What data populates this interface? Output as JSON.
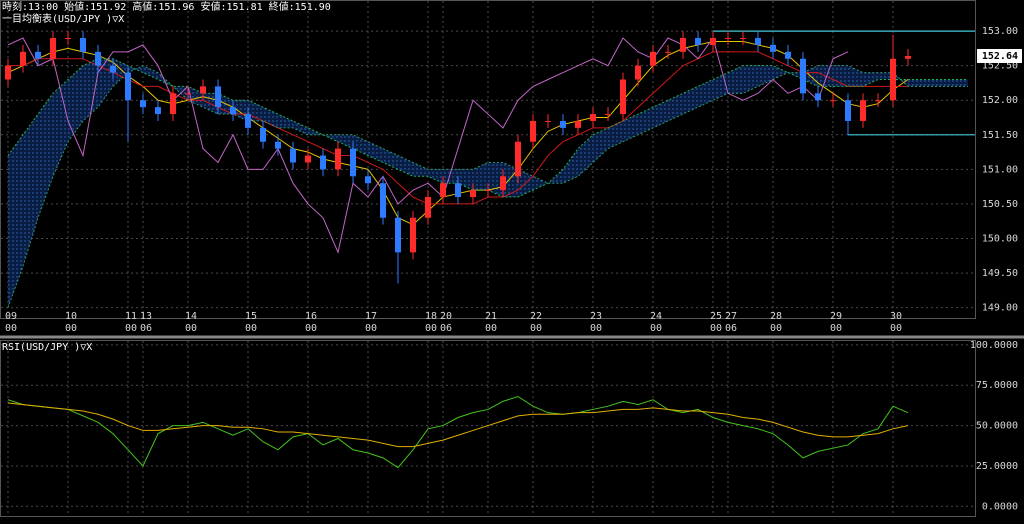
{
  "chart_data": [
    {
      "type": "candlestick",
      "header": "時刻:13:00 始値:151.92 高値:151.96 安値:151.81 終値:151.90",
      "title": "一目均衡表(USD/JPY )▽X",
      "categories": [
        "09",
        null,
        null,
        null,
        "10",
        null,
        null,
        null,
        "11",
        "13",
        null,
        null,
        "14",
        null,
        null,
        null,
        "15",
        null,
        null,
        null,
        "16",
        null,
        null,
        null,
        "17",
        null,
        null,
        null,
        "18",
        "20",
        null,
        null,
        "21",
        null,
        null,
        "22",
        null,
        null,
        null,
        "23",
        null,
        null,
        null,
        "24",
        null,
        null,
        null,
        "25",
        "27",
        null,
        null,
        "28",
        null,
        null,
        null,
        "29",
        null,
        null,
        null,
        "30",
        null,
        null,
        null,
        null,
        null
      ],
      "subcategories": [
        "00",
        null,
        null,
        null,
        "00",
        null,
        null,
        null,
        "00",
        "06",
        null,
        null,
        "00",
        null,
        null,
        null,
        "00",
        null,
        null,
        null,
        "00",
        null,
        null,
        null,
        "00",
        null,
        null,
        null,
        "00",
        "06",
        null,
        null,
        "00",
        null,
        null,
        "00",
        null,
        null,
        null,
        "00",
        null,
        null,
        null,
        "00",
        null,
        null,
        null,
        "00",
        "06",
        null,
        null,
        "00",
        null,
        null,
        null,
        "00",
        null,
        null,
        null,
        "00",
        null,
        null,
        null,
        null,
        null
      ],
      "open": [
        152.3,
        152.5,
        152.7,
        152.6,
        152.9,
        152.9,
        152.7,
        152.5,
        152.4,
        152.0,
        151.9,
        151.8,
        152.1,
        152.1,
        152.2,
        151.9,
        151.8,
        151.6,
        151.4,
        151.3,
        151.1,
        151.2,
        151.0,
        151.3,
        150.9,
        150.8,
        150.3,
        149.8,
        150.3,
        150.6,
        150.8,
        150.6,
        150.7,
        150.7,
        150.9,
        151.4,
        151.7,
        151.7,
        151.6,
        151.7,
        151.8,
        151.8,
        152.3,
        152.5,
        152.7,
        152.7,
        152.9,
        152.8,
        152.9,
        152.9,
        152.9,
        152.8,
        152.7,
        152.6,
        152.1,
        152.0,
        152.0,
        151.7,
        152.0,
        152.0,
        152.6,
        null,
        null,
        null,
        null
      ],
      "high": [
        152.6,
        152.8,
        152.8,
        153.0,
        153.0,
        153.0,
        152.8,
        152.6,
        152.5,
        152.1,
        152.0,
        152.2,
        152.2,
        152.3,
        152.3,
        152.0,
        151.9,
        151.7,
        151.5,
        151.4,
        151.3,
        151.3,
        151.4,
        151.4,
        151.0,
        150.9,
        150.4,
        150.4,
        150.7,
        150.9,
        150.9,
        150.8,
        150.8,
        151.0,
        151.5,
        151.8,
        151.8,
        151.8,
        151.8,
        151.9,
        151.9,
        152.4,
        152.6,
        152.8,
        152.8,
        153.0,
        153.0,
        153.0,
        153.0,
        153.0,
        153.0,
        152.9,
        152.8,
        152.7,
        152.2,
        152.1,
        152.1,
        152.1,
        152.1,
        152.95,
        152.74,
        null,
        null,
        null,
        null
      ],
      "low": [
        152.2,
        152.4,
        152.5,
        152.5,
        152.8,
        152.6,
        152.4,
        152.3,
        151.4,
        151.8,
        151.7,
        151.7,
        152.0,
        152.0,
        151.8,
        151.7,
        151.5,
        151.3,
        151.2,
        151.0,
        151.0,
        150.9,
        150.9,
        150.8,
        150.7,
        150.2,
        149.35,
        149.7,
        150.2,
        150.5,
        150.5,
        150.5,
        150.6,
        150.6,
        150.8,
        151.3,
        151.6,
        151.5,
        151.5,
        151.6,
        151.7,
        151.7,
        152.2,
        152.4,
        152.6,
        152.6,
        152.7,
        152.7,
        152.8,
        152.8,
        152.7,
        152.6,
        152.5,
        152.0,
        151.9,
        151.9,
        151.5,
        151.6,
        151.9,
        151.9,
        152.5,
        null,
        null,
        null,
        null
      ],
      "close": [
        152.5,
        152.7,
        152.6,
        152.9,
        152.9,
        152.7,
        152.5,
        152.4,
        152.0,
        151.9,
        151.8,
        152.1,
        152.1,
        152.2,
        151.9,
        151.8,
        151.6,
        151.4,
        151.3,
        151.1,
        151.2,
        151.0,
        151.3,
        150.9,
        150.8,
        150.3,
        149.8,
        150.3,
        150.6,
        150.8,
        150.6,
        150.7,
        150.7,
        150.9,
        151.4,
        151.7,
        151.7,
        151.6,
        151.7,
        151.8,
        151.8,
        152.3,
        152.5,
        152.7,
        152.7,
        152.9,
        152.8,
        152.9,
        152.9,
        152.9,
        152.8,
        152.7,
        152.6,
        152.1,
        152.0,
        152.0,
        151.7,
        152.0,
        152.0,
        152.6,
        152.64,
        null,
        null,
        null,
        null
      ],
      "up_color": "#ff2a2a",
      "down_color": "#2f7bff",
      "cloud_color": "#1e5aa8",
      "series": [
        {
          "color": "#e8c400",
          "values": [
            152.4,
            152.5,
            152.6,
            152.7,
            152.75,
            152.7,
            152.65,
            152.55,
            152.35,
            152.2,
            152.0,
            151.95,
            152.0,
            152.05,
            152.0,
            151.9,
            151.75,
            151.6,
            151.45,
            151.3,
            151.25,
            151.15,
            151.1,
            151.05,
            151.0,
            150.7,
            150.3,
            150.2,
            150.4,
            150.6,
            150.65,
            150.7,
            150.7,
            150.75,
            151.0,
            151.3,
            151.55,
            151.65,
            151.7,
            151.75,
            151.75,
            152.0,
            152.25,
            152.5,
            152.65,
            152.75,
            152.8,
            152.85,
            152.85,
            152.85,
            152.8,
            152.75,
            152.65,
            152.45,
            152.25,
            152.1,
            151.95,
            151.9,
            151.95,
            152.15,
            152.3,
            null,
            null,
            null,
            null
          ]
        },
        {
          "color": "#d01818",
          "values": [
            152.5,
            152.5,
            152.6,
            152.6,
            152.6,
            152.6,
            152.5,
            152.4,
            152.3,
            152.2,
            152.2,
            152.1,
            152.0,
            152.0,
            151.9,
            151.8,
            151.8,
            151.7,
            151.6,
            151.5,
            151.4,
            151.3,
            151.2,
            151.2,
            151.1,
            151.0,
            150.8,
            150.6,
            150.5,
            150.5,
            150.5,
            150.5,
            150.6,
            150.6,
            150.7,
            150.9,
            151.2,
            151.4,
            151.5,
            151.6,
            151.6,
            151.7,
            151.9,
            152.1,
            152.3,
            152.5,
            152.6,
            152.7,
            152.7,
            152.7,
            152.7,
            152.6,
            152.5,
            152.4,
            152.4,
            152.3,
            152.2,
            152.2,
            152.2,
            152.2,
            152.2,
            null,
            null,
            null,
            null
          ]
        },
        {
          "color": "#22b455",
          "dash": true,
          "values": [
            151.2,
            151.5,
            151.8,
            152.1,
            152.3,
            152.5,
            152.6,
            152.6,
            152.5,
            152.4,
            152.3,
            152.2,
            152.2,
            152.1,
            152.1,
            152.0,
            152.0,
            151.9,
            151.8,
            151.7,
            151.6,
            151.5,
            151.4,
            151.3,
            151.2,
            151.1,
            151.0,
            150.9,
            150.9,
            150.8,
            150.8,
            150.7,
            150.7,
            150.6,
            150.6,
            150.7,
            150.8,
            151.0,
            151.3,
            151.5,
            151.6,
            151.7,
            151.8,
            151.9,
            152.0,
            152.1,
            152.2,
            152.3,
            152.4,
            152.5,
            152.5,
            152.5,
            152.4,
            152.3,
            152.2,
            152.2,
            152.2,
            152.2,
            152.3,
            152.3,
            152.3,
            152.3,
            152.3,
            152.3,
            152.3
          ]
        },
        {
          "color": "#2f9a70",
          "dash": true,
          "values": [
            149.0,
            149.6,
            150.3,
            150.9,
            151.4,
            151.7,
            151.9,
            152.2,
            152.4,
            152.5,
            152.4,
            152.2,
            152.0,
            151.9,
            151.8,
            151.8,
            151.7,
            151.7,
            151.6,
            151.6,
            151.5,
            151.5,
            151.5,
            151.5,
            151.4,
            151.3,
            151.2,
            151.1,
            151.0,
            151.0,
            151.0,
            151.0,
            151.1,
            151.1,
            151.0,
            150.9,
            150.8,
            150.8,
            150.9,
            151.1,
            151.3,
            151.4,
            151.5,
            151.6,
            151.7,
            151.8,
            151.9,
            152.0,
            152.1,
            152.1,
            152.2,
            152.3,
            152.4,
            152.4,
            152.5,
            152.5,
            152.5,
            152.4,
            152.4,
            152.4,
            152.2,
            152.2,
            152.2,
            152.2,
            152.2
          ]
        },
        {
          "color": "#c466c8",
          "values": [
            152.8,
            152.9,
            152.5,
            152.6,
            151.7,
            151.2,
            152.4,
            152.7,
            152.7,
            152.8,
            152.5,
            152.0,
            152.2,
            151.3,
            151.1,
            151.5,
            151.0,
            151.0,
            151.3,
            150.8,
            150.5,
            150.3,
            149.8,
            150.8,
            150.6,
            150.9,
            150.5,
            150.7,
            150.8,
            150.6,
            151.3,
            152.0,
            151.8,
            151.6,
            152.0,
            152.2,
            152.3,
            152.4,
            152.5,
            152.6,
            152.5,
            152.9,
            152.7,
            152.6,
            152.9,
            152.8,
            152.6,
            152.9,
            152.1,
            152.0,
            152.1,
            152.3,
            152.1,
            152.2,
            152.0,
            152.6,
            152.7,
            null,
            null,
            null,
            null,
            null,
            null,
            null,
            null
          ]
        }
      ],
      "levels": {
        "color": "#3fc8d8",
        "values": [
          153.0,
          151.5
        ]
      },
      "last_price": 152.64,
      "ylim": [
        148.85,
        153.45
      ],
      "yticks": [
        {
          "value": 149.0,
          "label": "149.00"
        },
        {
          "value": 149.5,
          "label": "149.50"
        },
        {
          "value": 150.0,
          "label": "150.00"
        },
        {
          "value": 150.5,
          "label": "150.50"
        },
        {
          "value": 151.0,
          "label": "151.00"
        },
        {
          "value": 151.5,
          "label": "151.50"
        },
        {
          "value": 152.0,
          "label": "152.00"
        },
        {
          "value": 152.5,
          "label": "152.50"
        },
        {
          "value": 153.0,
          "label": "153.00"
        }
      ],
      "grid": true
    },
    {
      "type": "line",
      "title": "RSI(USD/JPY )▽X",
      "series": [
        {
          "color": "#45c41e",
          "values": [
            66,
            63,
            62,
            61,
            60,
            56,
            52,
            45,
            35,
            25,
            45,
            50,
            50,
            52,
            48,
            44,
            48,
            40,
            35,
            43,
            45,
            38,
            42,
            35,
            33,
            30,
            24,
            35,
            48,
            50,
            55,
            58,
            60,
            65,
            68,
            62,
            58,
            57,
            58,
            60,
            62,
            65,
            63,
            66,
            60,
            58,
            60,
            55,
            52,
            50,
            48,
            45,
            38,
            30,
            34,
            36,
            38,
            45,
            48,
            62,
            58,
            null,
            null,
            null,
            null
          ]
        },
        {
          "color": "#e0b000",
          "values": [
            64,
            63,
            62,
            61,
            60,
            59,
            57,
            54,
            50,
            47,
            47,
            48,
            49,
            50,
            50,
            49,
            49,
            48,
            46,
            46,
            45,
            44,
            43,
            42,
            41,
            39,
            37,
            37,
            39,
            41,
            44,
            47,
            50,
            53,
            56,
            57,
            57,
            57,
            58,
            58,
            59,
            60,
            60,
            61,
            60,
            59,
            59,
            58,
            57,
            55,
            54,
            52,
            49,
            46,
            44,
            43,
            43,
            44,
            45,
            48,
            50,
            null,
            null,
            null,
            null
          ]
        }
      ],
      "ylim": [
        -6,
        103
      ],
      "yticks": [
        {
          "value": 0,
          "label": "0.0000"
        },
        {
          "value": 25,
          "label": "25.0000"
        },
        {
          "value": 50,
          "label": "50.0000"
        },
        {
          "value": 75,
          "label": "75.0000"
        },
        {
          "value": 100,
          "label": "100.0000"
        }
      ],
      "grid": true
    }
  ]
}
